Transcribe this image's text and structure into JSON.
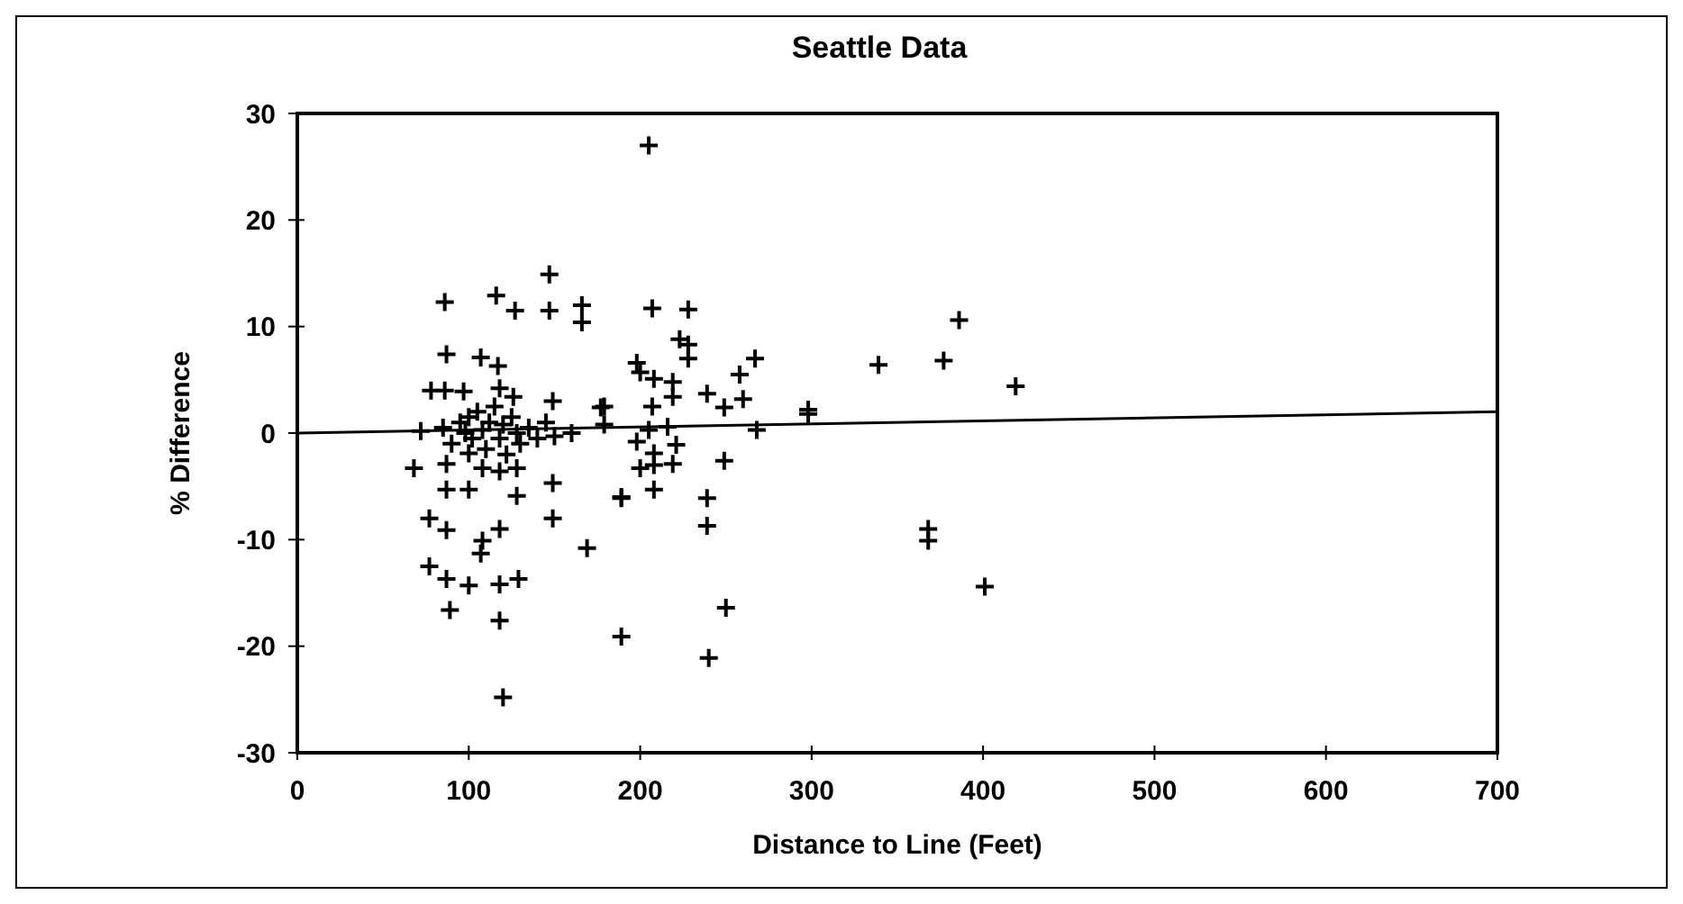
{
  "chart_data": {
    "type": "scatter",
    "title": "Seattle Data",
    "xlabel": "Distance to Line (Feet)",
    "ylabel": "% Difference",
    "xlim": [
      0,
      700
    ],
    "xticks": [
      0,
      100,
      200,
      300,
      400,
      500,
      600,
      700
    ],
    "ylim": [
      -30,
      30
    ],
    "yticks": [
      -30,
      -20,
      -10,
      0,
      10,
      20,
      30
    ],
    "grid": false,
    "series": [
      {
        "color": "#000000",
        "marker": "cross",
        "x": [
          86,
          116,
          127,
          147,
          147,
          166,
          166,
          87,
          107,
          117,
          78,
          86,
          97,
          118,
          126,
          149,
          177,
          68,
          87,
          100,
          108,
          118,
          128,
          87,
          100,
          128,
          149,
          149,
          189,
          77,
          87,
          108,
          118,
          107,
          169,
          77,
          87,
          100,
          118,
          129,
          89,
          118,
          189,
          120,
          205,
          207,
          228,
          223,
          228,
          228,
          267,
          258,
          198,
          200,
          208,
          219,
          219,
          239,
          249,
          260,
          339,
          298,
          298,
          268,
          179,
          179,
          207,
          205,
          216,
          221,
          198,
          208,
          219,
          200,
          208,
          249,
          189,
          208,
          239,
          239,
          250,
          240,
          386,
          377,
          419,
          368,
          368,
          401,
          72,
          85,
          90,
          95,
          98,
          100,
          102,
          105,
          108,
          110,
          112,
          115,
          118,
          120,
          122,
          125,
          128,
          130,
          135,
          140,
          145,
          150,
          160
        ],
        "values": [
          12.3,
          12.9,
          11.5,
          14.9,
          11.5,
          12.0,
          10.4,
          7.4,
          7.1,
          6.3,
          4.0,
          4.0,
          3.9,
          4.2,
          3.4,
          3.0,
          2.4,
          -3.3,
          -2.9,
          -1.9,
          -3.3,
          -3.6,
          -3.3,
          -5.3,
          -5.3,
          -5.9,
          -4.7,
          -8.0,
          -6.1,
          -8.0,
          -9.1,
          -10.1,
          -9.0,
          -11.3,
          -10.8,
          -12.5,
          -13.7,
          -14.3,
          -14.2,
          -13.7,
          -16.6,
          -17.6,
          -19.1,
          -24.8,
          27,
          11.7,
          11.6,
          8.8,
          8.3,
          7.0,
          7.0,
          5.5,
          6.6,
          5.7,
          5.1,
          4.8,
          3.4,
          3.7,
          2.4,
          3.2,
          6.4,
          2.2,
          1.8,
          0.3,
          2.5,
          0.8,
          2.5,
          0.3,
          0.6,
          -1.1,
          -0.8,
          -1.9,
          -2.9,
          -3.3,
          -3.0,
          -2.6,
          -6.0,
          -5.3,
          -6.1,
          -8.7,
          -16.4,
          -21.1,
          10.6,
          6.8,
          4.4,
          -9.0,
          -10.1,
          -14.4,
          0.2,
          0.5,
          -1,
          1,
          0,
          1.5,
          -0.5,
          2,
          0.3,
          -1.5,
          1,
          2.5,
          -0.5,
          0.8,
          -2,
          1.5,
          0,
          -1,
          0.5,
          -0.5,
          1,
          -0.3,
          0
        ]
      },
      {
        "type": "line",
        "color": "#000000",
        "x": [
          0,
          700
        ],
        "values": [
          0,
          2
        ],
        "marker": "none",
        "line_style": "solid"
      }
    ]
  }
}
